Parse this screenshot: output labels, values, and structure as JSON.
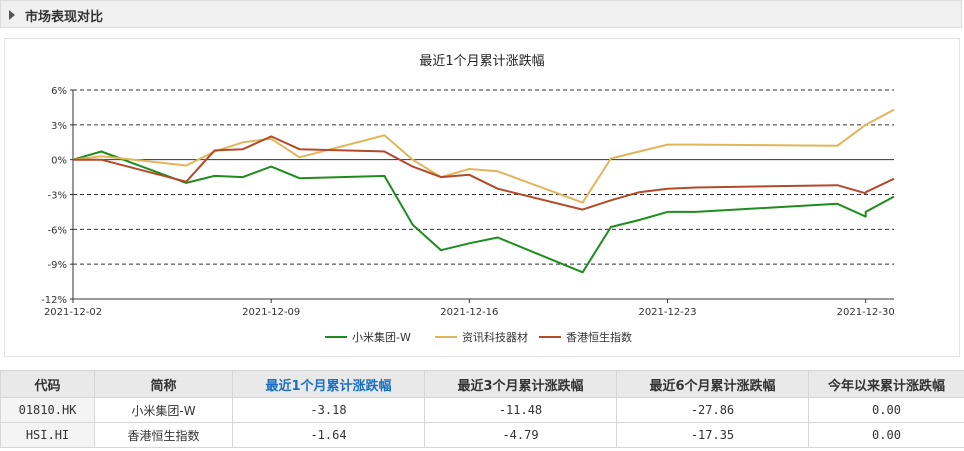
{
  "header": {
    "title": "市场表现对比"
  },
  "chart_data": {
    "type": "line",
    "title": "最近1个月累计涨跌幅",
    "xlabel": "",
    "ylabel": "",
    "ylim": [
      -12,
      6
    ],
    "yticks": [
      6,
      3,
      0,
      -3,
      -6,
      -9,
      -12
    ],
    "ytick_labels": [
      "6%",
      "3%",
      "0%",
      "-3%",
      "-6%",
      "-9%",
      "-12%"
    ],
    "x_dates": [
      "2021-12-02",
      "2021-12-03",
      "2021-12-06",
      "2021-12-07",
      "2021-12-08",
      "2021-12-09",
      "2021-12-10",
      "2021-12-13",
      "2021-12-14",
      "2021-12-15",
      "2021-12-16",
      "2021-12-17",
      "2021-12-20",
      "2021-12-21",
      "2021-12-22",
      "2021-12-23",
      "2021-12-24",
      "2021-12-29",
      "2021-12-30",
      "2021-12-31"
    ],
    "xticks": [
      "2021-12-02",
      "2021-12-09",
      "2021-12-16",
      "2021-12-23",
      "2021-12-30"
    ],
    "grid": "horizontal-dashed",
    "legend_position": "bottom",
    "series": [
      {
        "name": "小米集团-W",
        "color": "#1e8c1e",
        "points": [
          [
            "2021-12-02",
            0
          ],
          [
            "2021-12-03",
            0.7
          ],
          [
            "2021-12-06",
            -2.0
          ],
          [
            "2021-12-07",
            -1.4
          ],
          [
            "2021-12-08",
            -1.5
          ],
          [
            "2021-12-09",
            -0.6
          ],
          [
            "2021-12-10",
            -1.6
          ],
          [
            "2021-12-13",
            -1.4
          ],
          [
            "2021-12-14",
            -5.6
          ],
          [
            "2021-12-15",
            -7.8
          ],
          [
            "2021-12-16",
            -7.2
          ],
          [
            "2021-12-17",
            -6.7
          ],
          [
            "2021-12-20",
            -9.7
          ],
          [
            "2021-12-21",
            -5.8
          ],
          [
            "2021-12-22",
            -5.2
          ],
          [
            "2021-12-23",
            -4.5
          ],
          [
            "2021-12-24",
            -4.5
          ],
          [
            "2021-12-29",
            -3.8
          ],
          [
            "2021-12-30",
            -4.9
          ],
          [
            "2021-12-30",
            -4.5
          ],
          [
            "2021-12-31",
            -3.18
          ]
        ]
      },
      {
        "name": "资讯科技器材",
        "color": "#e2b55a",
        "points": [
          [
            "2021-12-02",
            0
          ],
          [
            "2021-12-03",
            0.3
          ],
          [
            "2021-12-06",
            -0.5
          ],
          [
            "2021-12-07",
            0.7
          ],
          [
            "2021-12-08",
            1.5
          ],
          [
            "2021-12-09",
            1.8
          ],
          [
            "2021-12-10",
            0.2
          ],
          [
            "2021-12-13",
            2.1
          ],
          [
            "2021-12-14",
            0.0
          ],
          [
            "2021-12-15",
            -1.5
          ],
          [
            "2021-12-16",
            -0.8
          ],
          [
            "2021-12-17",
            -1.0
          ],
          [
            "2021-12-20",
            -3.7
          ],
          [
            "2021-12-21",
            0.1
          ],
          [
            "2021-12-22",
            0.7
          ],
          [
            "2021-12-23",
            1.3
          ],
          [
            "2021-12-24",
            1.3
          ],
          [
            "2021-12-29",
            1.2
          ],
          [
            "2021-12-30",
            3.0
          ],
          [
            "2021-12-31",
            4.3
          ]
        ]
      },
      {
        "name": "香港恒生指数",
        "color": "#b34a2a",
        "points": [
          [
            "2021-12-02",
            0
          ],
          [
            "2021-12-03",
            0.0
          ],
          [
            "2021-12-06",
            -1.9
          ],
          [
            "2021-12-07",
            0.8
          ],
          [
            "2021-12-08",
            0.9
          ],
          [
            "2021-12-09",
            2.0
          ],
          [
            "2021-12-10",
            0.9
          ],
          [
            "2021-12-13",
            0.7
          ],
          [
            "2021-12-14",
            -0.6
          ],
          [
            "2021-12-15",
            -1.5
          ],
          [
            "2021-12-16",
            -1.3
          ],
          [
            "2021-12-17",
            -2.5
          ],
          [
            "2021-12-20",
            -4.3
          ],
          [
            "2021-12-21",
            -3.5
          ],
          [
            "2021-12-22",
            -2.8
          ],
          [
            "2021-12-23",
            -2.5
          ],
          [
            "2021-12-24",
            -2.4
          ],
          [
            "2021-12-29",
            -2.2
          ],
          [
            "2021-12-30",
            -2.9
          ],
          [
            "2021-12-30",
            -2.8
          ],
          [
            "2021-12-31",
            -1.64
          ]
        ]
      }
    ]
  },
  "table": {
    "headers": [
      "代码",
      "简称",
      "最近1个月累计涨跌幅",
      "最近3个月累计涨跌幅",
      "最近6个月累计涨跌幅",
      "今年以来累计涨跌幅"
    ],
    "rows": [
      [
        "01810.HK",
        "小米集团-W",
        "-3.18",
        "-11.48",
        "-27.86",
        "0.00"
      ],
      [
        "HSI.HI",
        "香港恒生指数",
        "-1.64",
        "-4.79",
        "-17.35",
        "0.00"
      ]
    ]
  }
}
